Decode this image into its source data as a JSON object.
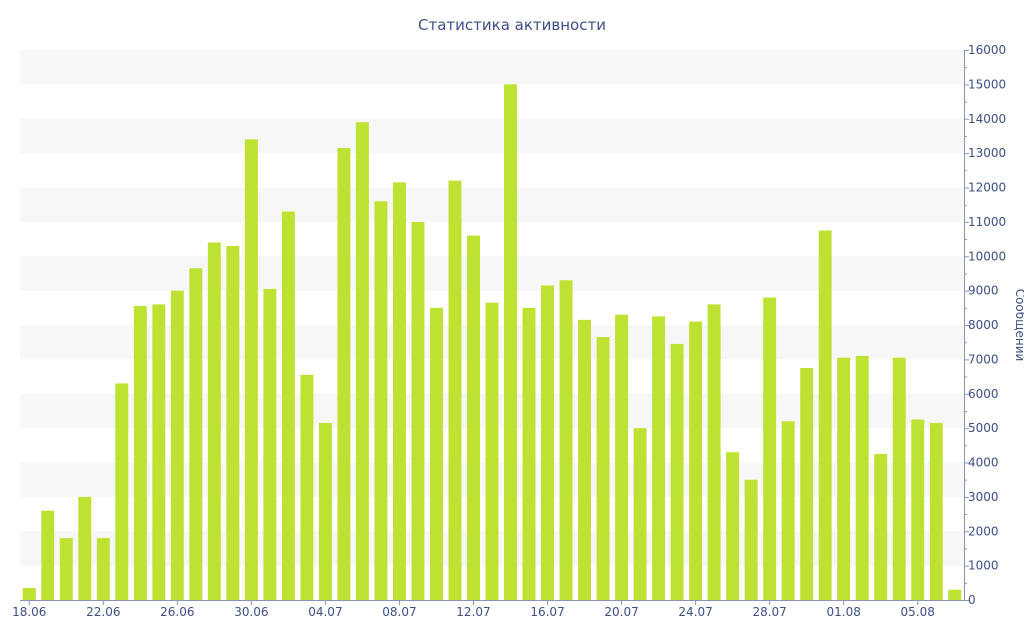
{
  "chart_data": {
    "type": "bar",
    "title": "Статистика активности",
    "ylabel": "Сообщений",
    "xlabel": "",
    "y_axis_side": "right",
    "ylim": [
      0,
      16000
    ],
    "y_ticks": [
      0,
      1000,
      2000,
      3000,
      4000,
      5000,
      6000,
      7000,
      8000,
      9000,
      10000,
      11000,
      12000,
      13000,
      14000,
      15000,
      16000
    ],
    "x_tick_labels": [
      "18.06",
      "22.06",
      "26.06",
      "30.06",
      "04.07",
      "08.07",
      "12.07",
      "16.07",
      "20.07",
      "24.07",
      "28.07",
      "01.08",
      "05.08"
    ],
    "categories": [
      "18.06",
      "19.06",
      "20.06",
      "21.06",
      "22.06",
      "23.06",
      "24.06",
      "25.06",
      "26.06",
      "27.06",
      "28.06",
      "29.06",
      "30.06",
      "01.07",
      "02.07",
      "03.07",
      "04.07",
      "05.07",
      "06.07",
      "07.07",
      "08.07",
      "09.07",
      "10.07",
      "11.07",
      "12.07",
      "13.07",
      "14.07",
      "15.07",
      "16.07",
      "17.07",
      "18.07",
      "19.07",
      "20.07",
      "21.07",
      "22.07",
      "23.07",
      "24.07",
      "25.07",
      "26.07",
      "27.07",
      "28.07",
      "29.07",
      "30.07",
      "31.07",
      "01.08",
      "02.08",
      "03.08",
      "04.08",
      "05.08",
      "06.08",
      "07.08"
    ],
    "values": [
      350,
      2600,
      1800,
      3000,
      1800,
      6300,
      8550,
      8600,
      9000,
      9650,
      10400,
      10300,
      13400,
      9050,
      11300,
      6550,
      5150,
      13150,
      13900,
      11600,
      12150,
      11000,
      8500,
      12200,
      10600,
      8650,
      15000,
      8500,
      9150,
      9300,
      8150,
      7650,
      8300,
      5000,
      8250,
      7450,
      8100,
      8600,
      4300,
      3500,
      8800,
      5200,
      6750,
      10750,
      7050,
      7100,
      4250,
      7050,
      5250,
      5150,
      300
    ],
    "bar_color": "#bde232",
    "band_color": "#f7f7f7",
    "text_color": "#3e4f86",
    "grid": false
  }
}
